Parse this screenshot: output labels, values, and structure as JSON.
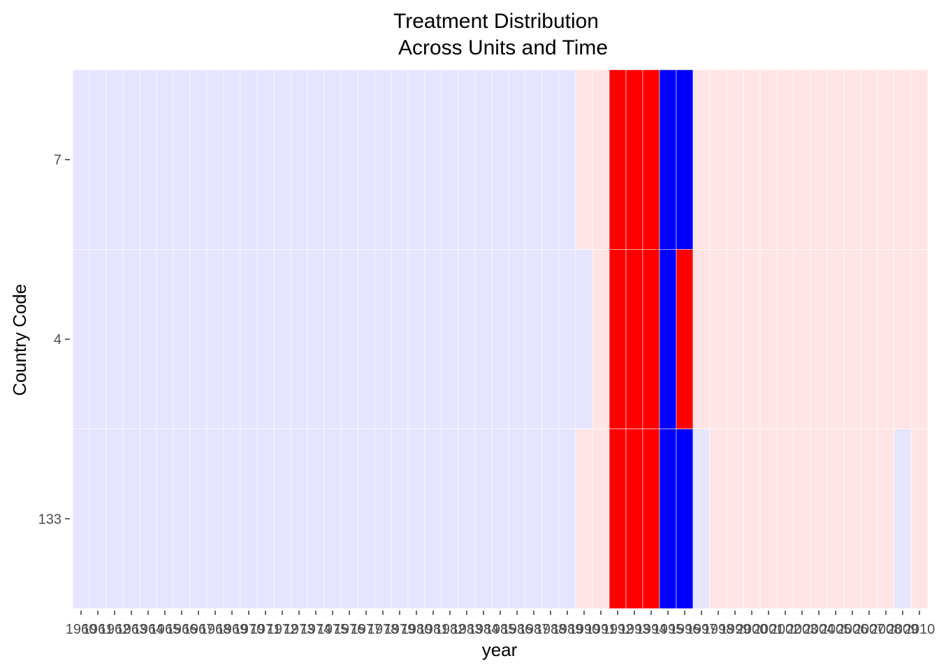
{
  "chart_data": {
    "type": "heatmap",
    "title_lines": [
      "Treatment Distribution",
      "Across Units and Time"
    ],
    "xlabel": "year",
    "ylabel": "Country Code",
    "x": [
      1960,
      1961,
      1962,
      1963,
      1964,
      1965,
      1966,
      1967,
      1968,
      1969,
      1970,
      1971,
      1972,
      1973,
      1974,
      1975,
      1976,
      1977,
      1978,
      1979,
      1980,
      1981,
      1982,
      1983,
      1984,
      1985,
      1986,
      1987,
      1988,
      1989,
      1990,
      1991,
      1992,
      1993,
      1994,
      1995,
      1996,
      1997,
      1998,
      1999,
      2000,
      2001,
      2002,
      2003,
      2004,
      2005,
      2006,
      2007,
      2008,
      2009,
      2010
    ],
    "x_tick_labels": [
      "1960",
      "1961",
      "1962",
      "1963",
      "1964",
      "1965",
      "1966",
      "1967",
      "1968",
      "1969",
      "1970",
      "1971",
      "1972",
      "1973",
      "1974",
      "1975",
      "1976",
      "1977",
      "1978",
      "1979",
      "1980",
      "1981",
      "1982",
      "1983",
      "1984",
      "1985",
      "1986",
      "1987",
      "1988",
      "1989",
      "1990",
      "1991",
      "1992",
      "1993",
      "1994",
      "1995",
      "1996",
      "1997",
      "1998",
      "1999",
      "2000",
      "2001",
      "2002",
      "2003",
      "2004",
      "2005",
      "2006",
      "2007",
      "2008",
      "2009",
      "2010"
    ],
    "y_categories": [
      "7",
      "4",
      "133"
    ],
    "colors": {
      "light_blue": "#e5e5ff",
      "light_red": "#ffe4e6",
      "red": "#ff0000",
      "blue": "#0000ff"
    },
    "rows": [
      {
        "unit": "7",
        "cells": [
          "light_blue",
          "light_blue",
          "light_blue",
          "light_blue",
          "light_blue",
          "light_blue",
          "light_blue",
          "light_blue",
          "light_blue",
          "light_blue",
          "light_blue",
          "light_blue",
          "light_blue",
          "light_blue",
          "light_blue",
          "light_blue",
          "light_blue",
          "light_blue",
          "light_blue",
          "light_blue",
          "light_blue",
          "light_blue",
          "light_blue",
          "light_blue",
          "light_blue",
          "light_blue",
          "light_blue",
          "light_blue",
          "light_blue",
          "light_blue",
          "light_red",
          "light_red",
          "red",
          "red",
          "red",
          "blue",
          "blue",
          "light_red",
          "light_red",
          "light_red",
          "light_red",
          "light_red",
          "light_red",
          "light_red",
          "light_red",
          "light_red",
          "light_red",
          "light_red",
          "light_red",
          "light_red",
          "light_red"
        ]
      },
      {
        "unit": "4",
        "cells": [
          "light_blue",
          "light_blue",
          "light_blue",
          "light_blue",
          "light_blue",
          "light_blue",
          "light_blue",
          "light_blue",
          "light_blue",
          "light_blue",
          "light_blue",
          "light_blue",
          "light_blue",
          "light_blue",
          "light_blue",
          "light_blue",
          "light_blue",
          "light_blue",
          "light_blue",
          "light_blue",
          "light_blue",
          "light_blue",
          "light_blue",
          "light_blue",
          "light_blue",
          "light_blue",
          "light_blue",
          "light_blue",
          "light_blue",
          "light_blue",
          "light_blue",
          "light_red",
          "red",
          "red",
          "red",
          "blue",
          "red",
          "light_red",
          "light_red",
          "light_red",
          "light_red",
          "light_red",
          "light_red",
          "light_red",
          "light_red",
          "light_red",
          "light_red",
          "light_red",
          "light_red",
          "light_red",
          "light_red"
        ]
      },
      {
        "unit": "133",
        "cells": [
          "light_blue",
          "light_blue",
          "light_blue",
          "light_blue",
          "light_blue",
          "light_blue",
          "light_blue",
          "light_blue",
          "light_blue",
          "light_blue",
          "light_blue",
          "light_blue",
          "light_blue",
          "light_blue",
          "light_blue",
          "light_blue",
          "light_blue",
          "light_blue",
          "light_blue",
          "light_blue",
          "light_blue",
          "light_blue",
          "light_blue",
          "light_blue",
          "light_blue",
          "light_blue",
          "light_blue",
          "light_blue",
          "light_blue",
          "light_blue",
          "light_red",
          "light_red",
          "red",
          "red",
          "red",
          "blue",
          "blue",
          "light_blue",
          "light_red",
          "light_red",
          "light_red",
          "light_red",
          "light_red",
          "light_red",
          "light_red",
          "light_red",
          "light_red",
          "light_red",
          "light_red",
          "light_blue",
          "light_red"
        ]
      }
    ],
    "grid": true,
    "legend": "none"
  }
}
